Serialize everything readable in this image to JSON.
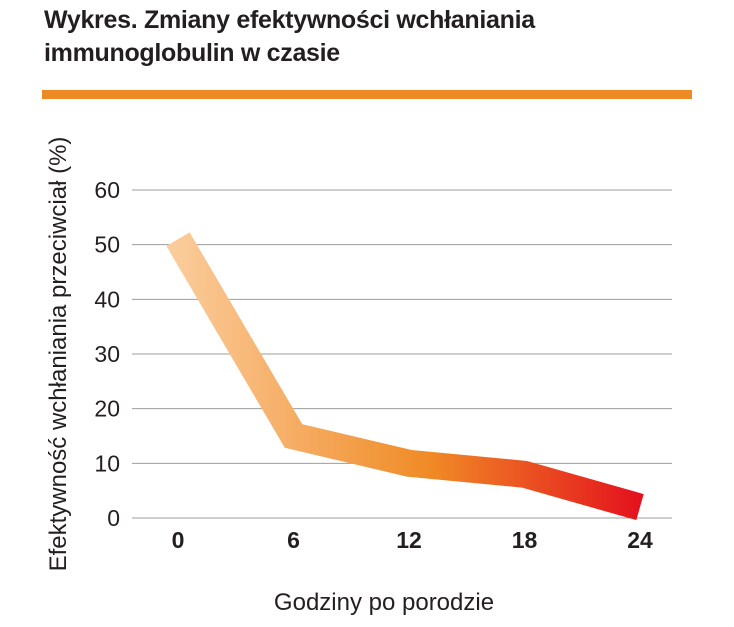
{
  "title_lines": [
    "Wykres. Zmiany efektywności wchłaniania",
    "immunoglobulin w czasie"
  ],
  "colors": {
    "accent_rule": "#ee8a23",
    "grid": "#9d9d9d",
    "gradient_start": "#fbd2a6",
    "gradient_mid": "#f08a25",
    "gradient_end": "#e3061d"
  },
  "chart_data": {
    "type": "line",
    "title": "Wykres. Zmiany efektywności wchłaniania immunoglobulin w czasie",
    "xlabel": "Godziny po porodzie",
    "ylabel": "Efektywność wchłaniania przeciwciał (%)",
    "x": [
      0,
      6,
      12,
      18,
      24
    ],
    "x_tick_labels": [
      "0",
      "6",
      "12",
      "18",
      "24"
    ],
    "y_ticks": [
      0,
      10,
      20,
      30,
      40,
      50,
      60
    ],
    "y_tick_labels": [
      "0",
      "10",
      "20",
      "30",
      "40",
      "50",
      "60"
    ],
    "ylim": [
      0,
      60
    ],
    "grid": true,
    "series": [
      {
        "values": [
          51,
          15,
          10,
          8,
          2
        ]
      }
    ]
  }
}
